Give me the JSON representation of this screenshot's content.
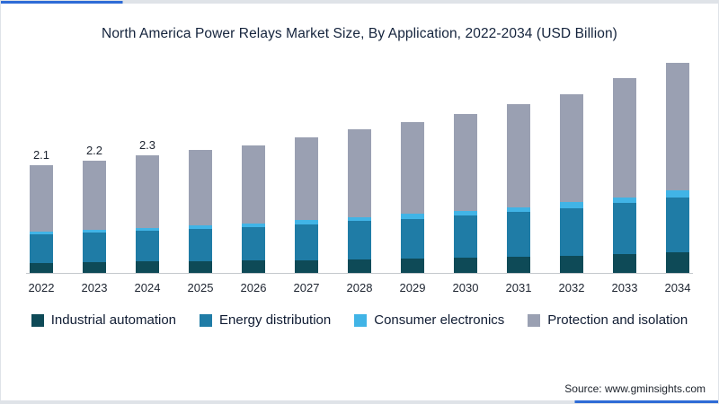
{
  "page": {
    "title": "North America Power Relays Market Size, By Application, 2022-2034 (USD Billion)",
    "source": "Source: www.gminsights.com"
  },
  "chart_data": {
    "type": "bar",
    "stacked": true,
    "title": "North America Power Relays Market Size, By Application, 2022-2034 (USD Billion)",
    "categories": [
      "2022",
      "2023",
      "2024",
      "2025",
      "2026",
      "2027",
      "2028",
      "2029",
      "2030",
      "2031",
      "2032",
      "2033",
      "2034"
    ],
    "series": [
      {
        "name": "Industrial automation",
        "color": "#0e4a57",
        "values": [
          0.2,
          0.21,
          0.22,
          0.23,
          0.24,
          0.25,
          0.27,
          0.28,
          0.3,
          0.32,
          0.34,
          0.36,
          0.4
        ]
      },
      {
        "name": "Energy distribution",
        "color": "#1f7ca6",
        "values": [
          0.55,
          0.58,
          0.6,
          0.63,
          0.66,
          0.7,
          0.74,
          0.78,
          0.82,
          0.87,
          0.93,
          1.0,
          1.08
        ]
      },
      {
        "name": "Consumer electronics",
        "color": "#41b4e6",
        "values": [
          0.05,
          0.06,
          0.06,
          0.07,
          0.07,
          0.08,
          0.08,
          0.09,
          0.09,
          0.1,
          0.11,
          0.12,
          0.13
        ]
      },
      {
        "name": "Protection and isolation",
        "color": "#9aa0b2",
        "values": [
          1.3,
          1.35,
          1.42,
          1.47,
          1.53,
          1.62,
          1.71,
          1.8,
          1.89,
          2.01,
          2.12,
          2.32,
          2.49
        ]
      }
    ],
    "totals": [
      2.1,
      2.2,
      2.3,
      2.4,
      2.5,
      2.65,
      2.8,
      2.95,
      3.1,
      3.3,
      3.5,
      3.8,
      4.1
    ],
    "bar_labels": [
      "2.1",
      "2.2",
      "2.3",
      "",
      "",
      "",
      "",
      "",
      "",
      "",
      "",
      "",
      ""
    ],
    "xlabel": "",
    "ylabel": "",
    "ylim": [
      0,
      4.5
    ],
    "grid": false,
    "legend_position": "bottom"
  }
}
